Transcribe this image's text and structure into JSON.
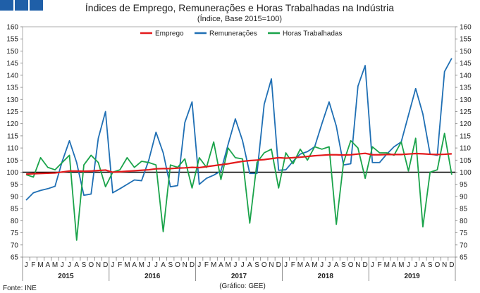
{
  "header": {
    "title": "Índices de Emprego, Remunerações e Horas Trabalhadas na Indústria",
    "subtitle": "(Índice, Base 2015=100)"
  },
  "footer": {
    "source": "Fonte: INE",
    "graphic_credit": "(Gráfico: GEE)"
  },
  "chart_data": {
    "type": "line",
    "title": "Índices de Emprego, Remunerações e Horas Trabalhadas na Indústria",
    "subtitle": "(Índice, Base 2015=100)",
    "years": [
      "2015",
      "2016",
      "2017",
      "2018",
      "2019"
    ],
    "month_labels": [
      "J",
      "F",
      "M",
      "A",
      "M",
      "J",
      "J",
      "A",
      "S",
      "O",
      "N",
      "D"
    ],
    "ylim": [
      65,
      160
    ],
    "yticks": [
      65,
      70,
      75,
      80,
      85,
      90,
      95,
      100,
      105,
      110,
      115,
      120,
      125,
      130,
      135,
      140,
      145,
      150,
      155,
      160
    ],
    "reference_line": 100,
    "legend_position": "top",
    "colors": {
      "Emprego": "#e31a1c",
      "Remunerações": "#1f6fb4",
      "Horas Trabalhadas": "#1aa34a",
      "reference": "#000000",
      "logo": "#1f5fa8"
    },
    "series": [
      {
        "name": "Emprego",
        "values": [
          99.2,
          99.4,
          99.5,
          99.6,
          99.7,
          100.1,
          100.5,
          100.5,
          100.4,
          100.5,
          100.7,
          100.9,
          100.0,
          100.2,
          100.4,
          100.6,
          100.8,
          101.0,
          101.4,
          101.5,
          101.5,
          101.7,
          101.8,
          102.0,
          101.9,
          102.3,
          102.7,
          103.1,
          103.5,
          104.0,
          104.5,
          104.8,
          105.0,
          105.2,
          105.6,
          106.0,
          105.8,
          106.0,
          106.2,
          106.5,
          106.8,
          107.0,
          107.2,
          107.2,
          107.1,
          107.2,
          107.5,
          107.8,
          107.2,
          107.2,
          107.3,
          107.3,
          107.3,
          107.5,
          107.7,
          107.6,
          107.4,
          107.3,
          107.4,
          107.6
        ]
      },
      {
        "name": "Remunerações",
        "values": [
          88.5,
          91.5,
          92.5,
          93.2,
          94.2,
          104.5,
          113.0,
          104.0,
          90.5,
          91.0,
          114.0,
          125.0,
          91.5,
          93.2,
          95.0,
          96.8,
          96.5,
          105.0,
          116.5,
          108.0,
          94.0,
          94.5,
          120.5,
          129.0,
          95.0,
          97.5,
          98.8,
          100.5,
          111.5,
          122.0,
          113.0,
          99.5,
          99.5,
          128.0,
          138.5,
          100.8,
          101.0,
          104.5,
          107.5,
          108.5,
          110.5,
          120.0,
          129.0,
          119.0,
          103.0,
          103.5,
          135.5,
          144.0,
          104.0,
          104.0,
          107.5,
          110.5,
          112.5,
          123.5,
          134.5,
          124.0,
          107.5,
          107.0,
          141.5,
          147.0
        ]
      },
      {
        "name": "Horas Trabalhadas",
        "values": [
          99.0,
          98.0,
          106.0,
          102.0,
          101.0,
          104.0,
          107.0,
          72.0,
          103.0,
          107.0,
          104.0,
          94.0,
          100.0,
          101.0,
          106.0,
          102.0,
          104.5,
          104.0,
          103.0,
          75.5,
          103.0,
          102.0,
          105.5,
          93.5,
          106.0,
          102.0,
          112.5,
          97.0,
          110.0,
          106.0,
          105.5,
          79.0,
          104.0,
          108.0,
          109.5,
          93.5,
          108.0,
          103.5,
          109.5,
          105.0,
          110.5,
          109.5,
          110.5,
          78.5,
          104.0,
          113.0,
          110.0,
          97.5,
          110.5,
          108.0,
          108.0,
          107.0,
          112.5,
          100.5,
          114.0,
          77.5,
          100.0,
          101.0,
          116.0,
          99.0
        ]
      }
    ]
  }
}
